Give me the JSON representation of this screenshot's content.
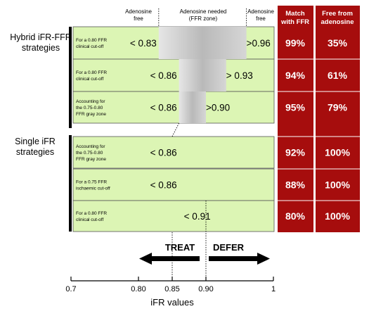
{
  "groups": {
    "hybrid": [
      "Hybrid iFR-FFR",
      "strategies"
    ],
    "single": [
      "Single iFR",
      "strategies"
    ]
  },
  "headers": {
    "adenosine_free": [
      "Adenosine",
      "free"
    ],
    "adenosine_needed": [
      "Adenosine needed",
      "(FFR zone)"
    ],
    "adenosine_free_right": [
      "Adenosine",
      "free"
    ],
    "match": [
      "Match",
      "with FFR"
    ],
    "free": [
      "Free from",
      "adenosine"
    ]
  },
  "rows": [
    {
      "desc": [
        "For a 0.80 FFR",
        "clinical cut-off"
      ],
      "low_label": "< 0.83",
      "low": 0.83,
      "high_label": ">0.96",
      "high": 0.96,
      "match": "99%",
      "free": "35%"
    },
    {
      "desc": [
        "For a 0.80 FFR",
        "clinical cut-off"
      ],
      "low_label": "< 0.86",
      "low": 0.86,
      "high_label": "> 0.93",
      "high": 0.93,
      "match": "94%",
      "free": "61%"
    },
    {
      "desc": [
        "Accounting for",
        "the 0.75-0.80",
        "FFR gray zone"
      ],
      "low_label": "< 0.86",
      "low": 0.86,
      "high_label": ">0.90",
      "high": 0.9,
      "match": "95%",
      "free": "79%"
    },
    {
      "desc": [
        "Accounting for",
        "the 0.75-0.80",
        "FFR gray zone"
      ],
      "low_label": "< 0.86",
      "low": 0.86,
      "high_label": "",
      "high": null,
      "match": "92%",
      "free": "100%"
    },
    {
      "desc": [
        "For a 0.75 FFR",
        "ischaemic cut-off"
      ],
      "low_label": "< 0.86",
      "low": 0.86,
      "high_label": "",
      "high": null,
      "match": "88%",
      "free": "100%"
    },
    {
      "desc": [
        "For a 0.80 FFR",
        "clinical cut-off"
      ],
      "low_label": "< 0.91",
      "low": 0.91,
      "high_label": "",
      "high": null,
      "match": "80%",
      "free": "100%"
    }
  ],
  "arrows": {
    "treat": "TREAT",
    "defer": "DEFER"
  },
  "axis": {
    "ticks": [
      {
        "value": 0.7,
        "label": "0.7"
      },
      {
        "value": 0.8,
        "label": "0.80"
      },
      {
        "value": 0.85,
        "label": "0.85"
      },
      {
        "value": 0.9,
        "label": "0.90"
      },
      {
        "value": 1.0,
        "label": "1"
      }
    ],
    "label": "iFR values"
  },
  "colors": {
    "row_fill": "#dcf5b4",
    "column_fill": "#a60d0d",
    "zone_gray": "#c8c8c8"
  }
}
